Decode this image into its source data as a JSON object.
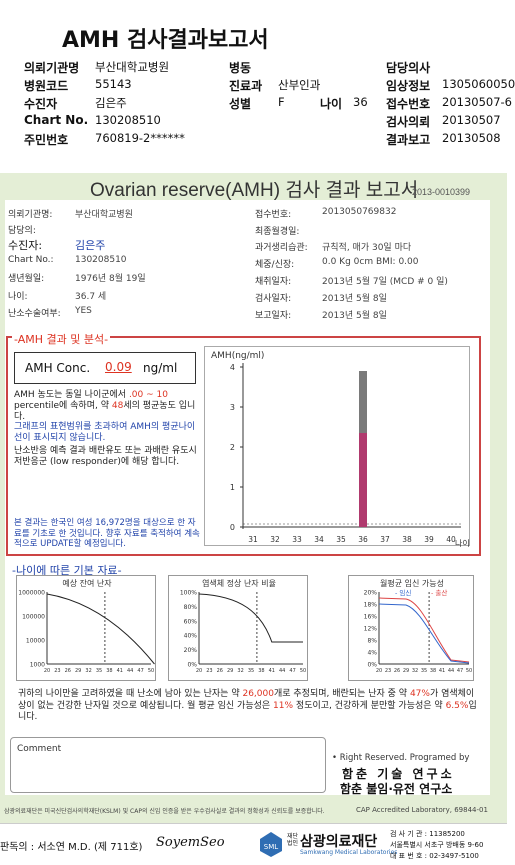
{
  "doc_title": "AMH 검사결과보고서",
  "header": {
    "rows": [
      [
        {
          "label": "의뢰기관명",
          "value": "부산대학교병원"
        },
        {
          "label": "병동",
          "value": ""
        },
        {
          "label": "담당의사",
          "value": ""
        }
      ],
      [
        {
          "label": "병원코드",
          "value": "55143"
        },
        {
          "label": "진료과",
          "value": "산부인과"
        },
        {
          "label": "임상정보",
          "value": "1305060050"
        }
      ],
      [
        {
          "label": "수진자",
          "value": "김은주"
        },
        {
          "label": "성별",
          "value": "F"
        },
        {
          "label": "접수번호",
          "value": "20130507-6"
        }
      ],
      [
        {
          "label": "Chart No.",
          "value": "130208510"
        },
        {
          "label": "",
          "value": ""
        },
        {
          "label": "검사의뢰",
          "value": "20130507"
        }
      ],
      [
        {
          "label": "주민번호",
          "value": "760819-2******"
        },
        {
          "label": "",
          "value": ""
        },
        {
          "label": "결과보고",
          "value": "20130508"
        }
      ]
    ],
    "age_label": "나이",
    "age_value": "36"
  },
  "report": {
    "title": "Ovarian reserve(AMH) 검사 결과 보고서",
    "id": "2013-0010399",
    "left_fields": [
      {
        "label": "의뢰기관명:",
        "value": "부산대학교병원"
      },
      {
        "label": "담당의:",
        "value": ""
      },
      {
        "label": "수진자:",
        "value": "김은주"
      },
      {
        "label": "Chart No.:",
        "value": "130208510"
      },
      {
        "label": "생년월일:",
        "value": "1976년 8월 19일"
      },
      {
        "label": "나이:",
        "value": "36.7 세"
      },
      {
        "label": "난소수술여부:",
        "value": "YES"
      }
    ],
    "right_fields": [
      {
        "label": "접수번호:",
        "value": "201305076983​2"
      },
      {
        "label": "최종월경일:",
        "value": ""
      },
      {
        "label": "과거생리습관:",
        "value": "규칙적, 매가 30일 마다"
      },
      {
        "label": "체중/신장:",
        "value": "0.0 Kg   0cm   BMI:  0.00"
      },
      {
        "label": "채취일자:",
        "value": "2013년 5월 7일     (MCD # 0 일)"
      },
      {
        "label": "검사일자:",
        "value": "2013년 5월 8일"
      },
      {
        "label": "보고일자:",
        "value": "2013년 5월 8일"
      }
    ],
    "section1": "AMH 결과 및 분석",
    "conc_label": "AMH Conc.",
    "conc_value": "0.09",
    "conc_unit": "ng/ml",
    "analysis": {
      "p1a": "AMH 농도는 동일 나이군에서 ",
      "p1b": ".00 ~ 10",
      "p1c": " percentile에 속하며, 약 ",
      "p1d": "48",
      "p1e": "세의 평균농도 입니다.",
      "p2": "그래프의 표현범위를 초과하여 AMH의 평균나이선이 표시되지 않습니다.",
      "p3": "난소반응 예측 결과 배란유도 또는 과배란 유도시 저반응군 (low responder)에 해당 합니다.",
      "p4": "본 결과는 한국인 여성 16,972명을 대상으로 한 자료를 기초로 한 것입니다. 향후 자료를 축적하여 계속적으로 UPDATE할 예정입니다."
    },
    "section2": "나이에 따른 기본 자료",
    "mini_titles": [
      "예상 잔여 난자",
      "염색체 정상 난자 비율",
      "월평균 임신 가능성"
    ],
    "mini_legend": [
      "임신",
      "출산"
    ],
    "summary": {
      "s1": "귀하의 나이만을 고려하였을 때 난소에 남아 있는 난자는 약 ",
      "s2": "26,000",
      "s3": "개로 추정되며, 배란되는 난자 중 약 ",
      "s4": "47%",
      "s5": "가 염색체이상이 없는 건강한 난자일 것으로 예상됩니다. 월 평균 임신 가능성은 ",
      "s6": "11%",
      "s7": " 정도이고, 건강하게 분만할 가능성은 약 ",
      "s8": "6.5%",
      "s9": "입니다."
    },
    "comment_label": "Comment",
    "rights": "Right Reserved. Programed by",
    "org1": "함춘 기술 연구소",
    "org2": "함춘 불임·유전 연구소",
    "cap": "CAP  Accredited  Laboratory,  69844-01",
    "notice": "삼광의료재단은 미국신단검사의학재단(KSLM) 및 CAP의 신임 인증을 받은 우수검사실로 결과의 정확성과 신뢰도를 보증합니다."
  },
  "footer": {
    "doctor": "판독의 : 서소연 M.D. (제 711호)",
    "signature": "SoyemSeo",
    "logo_small": "재단 법인",
    "logo_name": "삼광의료재단",
    "logo_en": "Samkwang Medical Laboratories",
    "info1": "검 사 기 관 : 11385200",
    "info2": "서울특별시 서초구 방배동 9-60",
    "info3": "대 표 번 호 : 02-3497-5100"
  },
  "chart_data": {
    "type": "bar",
    "ylabel": "AMH(ng/ml)",
    "x_ticks": [
      31,
      32,
      33,
      34,
      35,
      36,
      37,
      38,
      39,
      40
    ],
    "x_unit": "나이",
    "y_ticks": [
      0,
      1,
      2,
      3,
      4
    ],
    "ylim": [
      0,
      4
    ],
    "bar": {
      "x": 36,
      "value": 0.09
    },
    "range_whisker": {
      "x": 36,
      "low": 0.09,
      "high": 3.9
    },
    "range_fill": {
      "x": 36,
      "low": 0.09,
      "high": 2.35
    },
    "colors": {
      "bar": "#b03a6e",
      "whisker": "#666"
    }
  },
  "mini_charts": [
    {
      "type": "line",
      "title": "예상 잔여 난자",
      "x_ticks": [
        20,
        23,
        26,
        29,
        32,
        35,
        38,
        41,
        44,
        47,
        50
      ],
      "y_ticks": [
        "1000000",
        "100000",
        "10000",
        "1000"
      ],
      "marker_x": 36.7
    },
    {
      "type": "line",
      "title": "염색체 정상 난자 비율",
      "x_ticks": [
        20,
        23,
        26,
        29,
        32,
        35,
        38,
        41,
        44,
        47,
        50
      ],
      "y_ticks": [
        "100%",
        "80%",
        "60%",
        "40%",
        "20%",
        "0%"
      ],
      "marker_x": 36.7
    },
    {
      "type": "line",
      "title": "월평균 임신 가능성",
      "x_ticks": [
        20,
        23,
        26,
        29,
        32,
        35,
        38,
        41,
        44,
        47,
        50
      ],
      "y_ticks": [
        "20%",
        "18%",
        "16%",
        "12%",
        "8%",
        "4%",
        "0%"
      ],
      "marker_x": 36.7,
      "series": [
        {
          "name": "임신",
          "color": "#d44"
        },
        {
          "name": "출산",
          "color": "#36c"
        }
      ]
    }
  ]
}
